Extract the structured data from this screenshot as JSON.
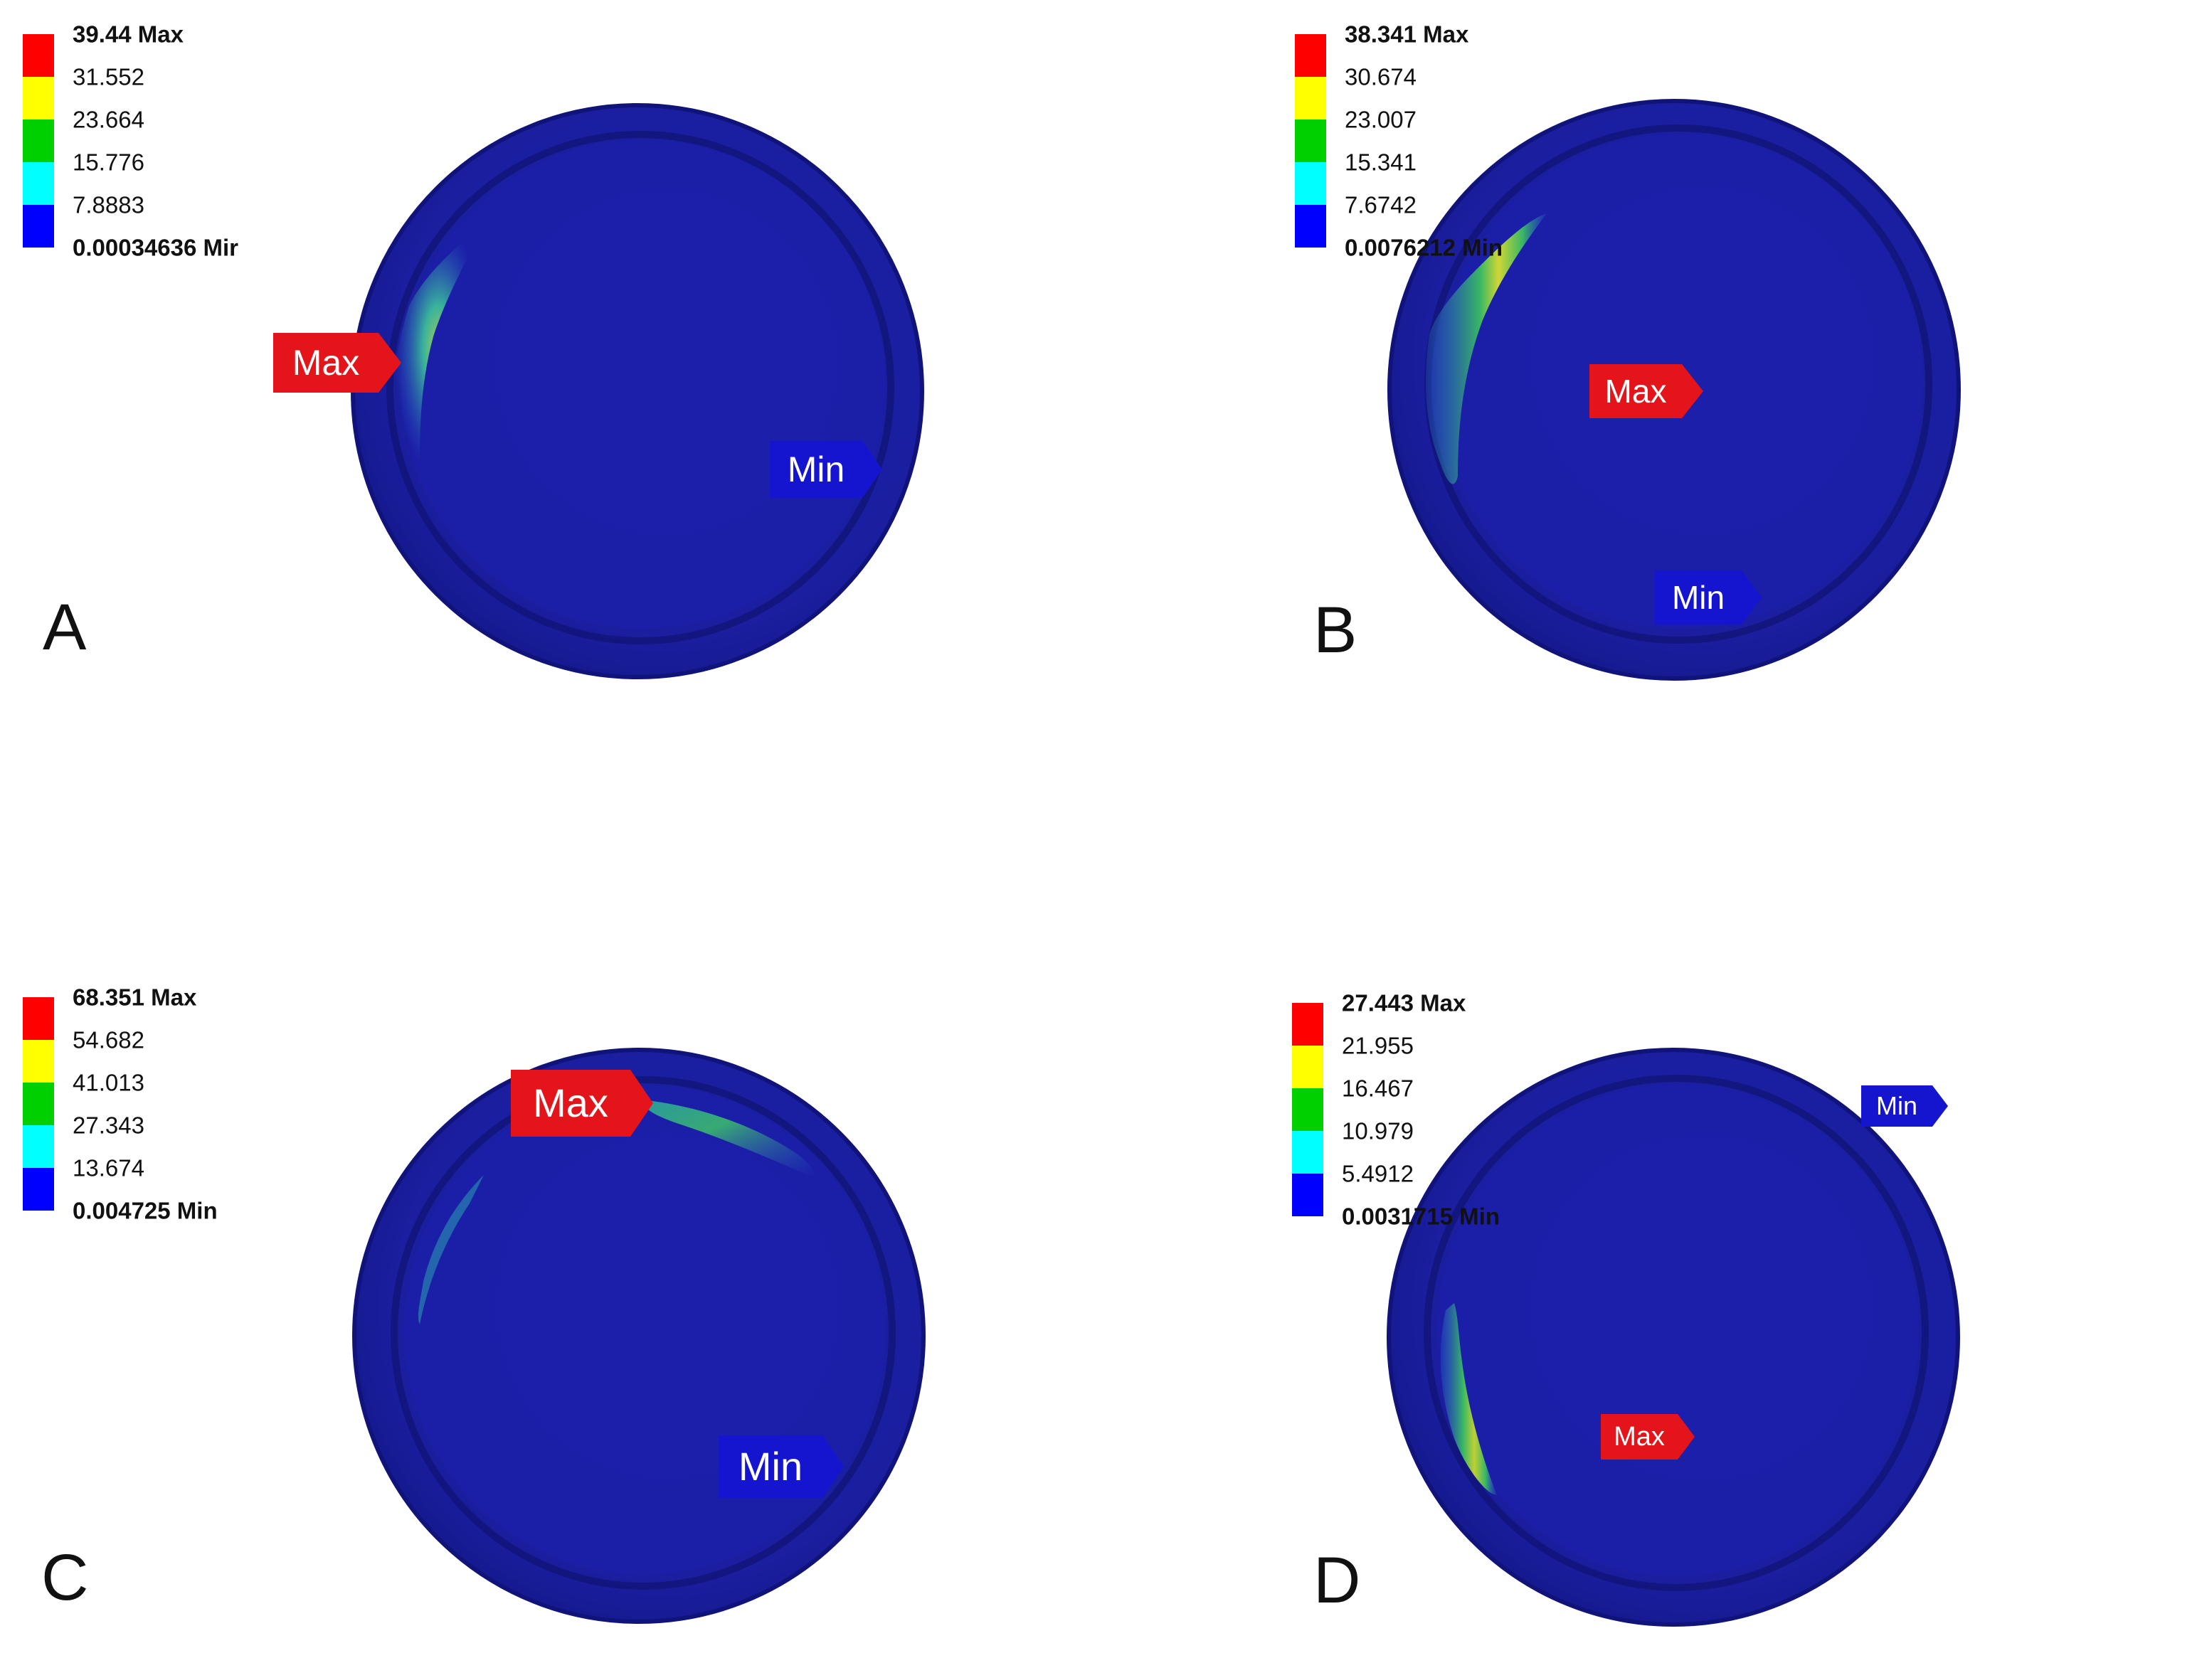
{
  "colors": {
    "background": "#ffffff",
    "legend_bands": [
      "#ff0000",
      "#ffff00",
      "#00d000",
      "#00ffff",
      "#0000ff"
    ],
    "disk": "#1a1fa8",
    "max_probe": "#e3151a",
    "min_probe": "#1515d0"
  },
  "panels": [
    {
      "letter": "A",
      "legend": [
        "39.44 Max",
        "31.552",
        "23.664",
        "15.776",
        "7.8883",
        "0.00034636 Mir"
      ],
      "max_label": "Max",
      "min_label": "Min"
    },
    {
      "letter": "B",
      "legend": [
        "38.341 Max",
        "30.674",
        "23.007",
        "15.341",
        "7.6742",
        "0.0076212 Min"
      ],
      "max_label": "Max",
      "min_label": "Min"
    },
    {
      "letter": "C",
      "legend": [
        "68.351 Max",
        "54.682",
        "41.013",
        "27.343",
        "13.674",
        "0.004725 Min"
      ],
      "max_label": "Max",
      "min_label": "Min"
    },
    {
      "letter": "D",
      "legend": [
        "27.443 Max",
        "21.955",
        "16.467",
        "10.979",
        "5.4912",
        "0.0031715 Min"
      ],
      "max_label": "Max",
      "min_label": "Min"
    }
  ]
}
